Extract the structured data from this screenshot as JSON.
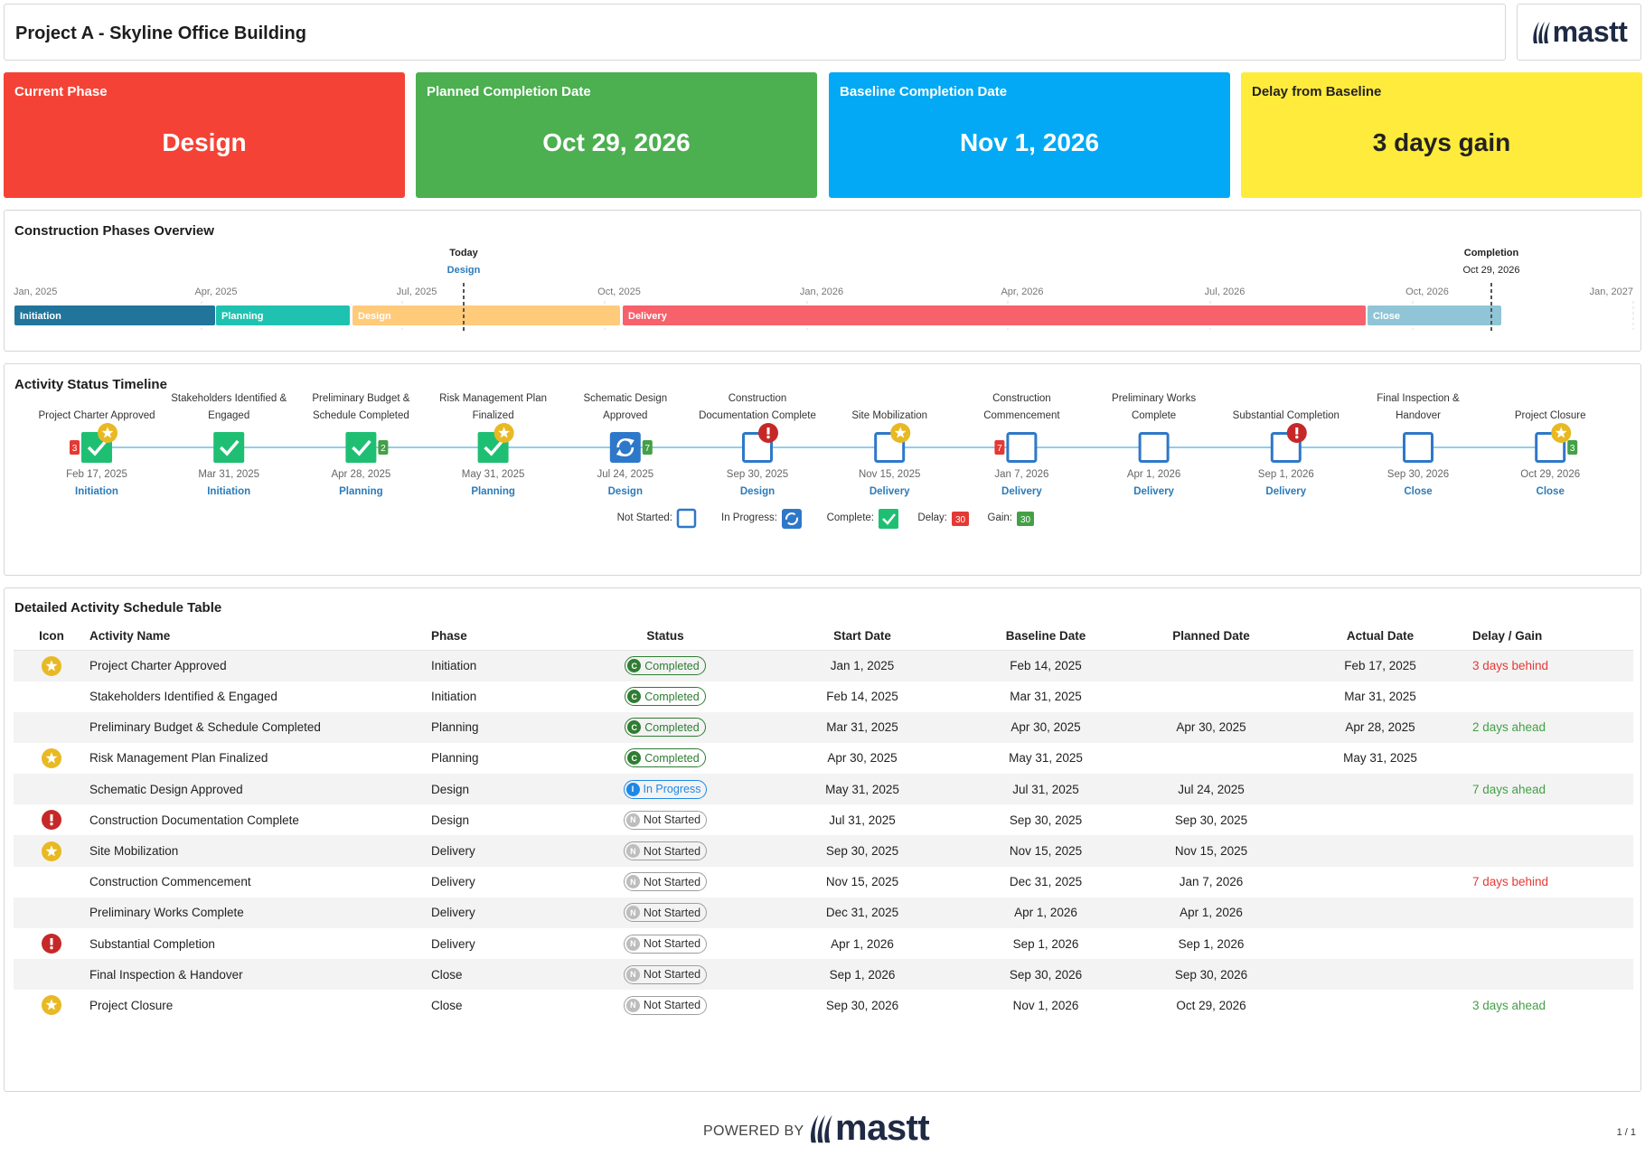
{
  "header": {
    "title": "Project A - Skyline Office Building",
    "logo_text": "mastt"
  },
  "kpis": {
    "phase": {
      "label": "Current Phase",
      "value": "Design",
      "color": "#f44336"
    },
    "planned": {
      "label": "Planned Completion Date",
      "value": "Oct 29, 2026",
      "color": "#4caf50"
    },
    "baseline": {
      "label": "Baseline Completion Date",
      "value": "Nov 1, 2026",
      "color": "#03a9f4"
    },
    "delay": {
      "label": "Delay from Baseline",
      "value": "3 days gain",
      "color": "#ffeb3b"
    }
  },
  "phases_overview": {
    "title": "Construction Phases Overview",
    "today_label": "Today",
    "today_phase": "Design",
    "completion_label": "Completion",
    "completion_date": "Oct 29, 2026",
    "axis_ticks": [
      "Jan, 2025",
      "Apr, 2025",
      "Jul, 2025",
      "Oct, 2025",
      "Jan, 2026",
      "Apr, 2026",
      "Jul, 2026",
      "Oct, 2026",
      "Jan, 2027"
    ],
    "bars": [
      {
        "name": "Initiation",
        "color": "#21759b"
      },
      {
        "name": "Planning",
        "color": "#1fc2b0"
      },
      {
        "name": "Design",
        "color": "#ffca7a"
      },
      {
        "name": "Delivery",
        "color": "#f6616b"
      },
      {
        "name": "Close",
        "color": "#8fc5d6"
      }
    ]
  },
  "timeline": {
    "title": "Activity Status Timeline",
    "milestones": [
      {
        "name": [
          "",
          "Project Charter Approved"
        ],
        "date": "Feb 17, 2025",
        "phase": "Initiation",
        "status": "complete",
        "marker": "star",
        "badge_left": "3",
        "badge_right": ""
      },
      {
        "name": [
          "Stakeholders Identified &",
          "Engaged"
        ],
        "date": "Mar 31, 2025",
        "phase": "Initiation",
        "status": "complete",
        "marker": "",
        "badge_left": "",
        "badge_right": ""
      },
      {
        "name": [
          "Preliminary Budget &",
          "Schedule Completed"
        ],
        "date": "Apr 28, 2025",
        "phase": "Planning",
        "status": "complete",
        "marker": "",
        "badge_left": "",
        "badge_right": "2"
      },
      {
        "name": [
          "Risk Management Plan",
          "Finalized"
        ],
        "date": "May 31, 2025",
        "phase": "Planning",
        "status": "complete",
        "marker": "star",
        "badge_left": "",
        "badge_right": ""
      },
      {
        "name": [
          "Schematic Design",
          "Approved"
        ],
        "date": "Jul 24, 2025",
        "phase": "Design",
        "status": "progress",
        "marker": "",
        "badge_left": "",
        "badge_right": "7"
      },
      {
        "name": [
          "Construction",
          "Documentation Complete"
        ],
        "date": "Sep 30, 2025",
        "phase": "Design",
        "status": "notstarted",
        "marker": "alert",
        "badge_left": "",
        "badge_right": ""
      },
      {
        "name": [
          "",
          "Site Mobilization"
        ],
        "date": "Nov 15, 2025",
        "phase": "Delivery",
        "status": "notstarted",
        "marker": "star",
        "badge_left": "",
        "badge_right": ""
      },
      {
        "name": [
          "Construction",
          "Commencement"
        ],
        "date": "Jan 7, 2026",
        "phase": "Delivery",
        "status": "notstarted",
        "marker": "",
        "badge_left": "7",
        "badge_right": ""
      },
      {
        "name": [
          "Preliminary Works",
          "Complete"
        ],
        "date": "Apr 1, 2026",
        "phase": "Delivery",
        "status": "notstarted",
        "marker": "",
        "badge_left": "",
        "badge_right": ""
      },
      {
        "name": [
          "",
          "Substantial Completion"
        ],
        "date": "Sep 1, 2026",
        "phase": "Delivery",
        "status": "notstarted",
        "marker": "alert",
        "badge_left": "",
        "badge_right": ""
      },
      {
        "name": [
          "Final Inspection &",
          "Handover"
        ],
        "date": "Sep 30, 2026",
        "phase": "Close",
        "status": "notstarted",
        "marker": "",
        "badge_left": "",
        "badge_right": ""
      },
      {
        "name": [
          "",
          "Project Closure"
        ],
        "date": "Oct 29, 2026",
        "phase": "Close",
        "status": "notstarted",
        "marker": "star",
        "badge_left": "",
        "badge_right": "3"
      }
    ],
    "legend": {
      "not_started": "Not Started:",
      "in_progress": "In Progress:",
      "complete": "Complete:",
      "delay": "Delay:",
      "gain": "Gain:",
      "sample_value": "30"
    }
  },
  "table": {
    "title": "Detailed Activity Schedule Table",
    "columns": [
      "Icon",
      "Activity Name",
      "Phase",
      "Status",
      "Start Date",
      "Baseline Date",
      "Planned Date",
      "Actual Date",
      "Delay / Gain"
    ],
    "rows": [
      {
        "icon": "star",
        "name": "Project Charter Approved",
        "phase": "Initiation",
        "status": "Completed",
        "status_key": "completed",
        "start": "Jan 1, 2025",
        "baseline": "Feb 14, 2025",
        "planned": "",
        "actual": "Feb 17, 2025",
        "delta": "3 days behind",
        "delta_type": "behind"
      },
      {
        "icon": "",
        "name": "Stakeholders Identified & Engaged",
        "phase": "Initiation",
        "status": "Completed",
        "status_key": "completed",
        "start": "Feb 14, 2025",
        "baseline": "Mar 31, 2025",
        "planned": "",
        "actual": "Mar 31, 2025",
        "delta": "",
        "delta_type": ""
      },
      {
        "icon": "",
        "name": "Preliminary Budget & Schedule Completed",
        "phase": "Planning",
        "status": "Completed",
        "status_key": "completed",
        "start": "Mar 31, 2025",
        "baseline": "Apr 30, 2025",
        "planned": "Apr 30, 2025",
        "actual": "Apr 28, 2025",
        "delta": "2 days ahead",
        "delta_type": "ahead"
      },
      {
        "icon": "star",
        "name": "Risk Management Plan Finalized",
        "phase": "Planning",
        "status": "Completed",
        "status_key": "completed",
        "start": "Apr 30, 2025",
        "baseline": "May 31, 2025",
        "planned": "",
        "actual": "May 31, 2025",
        "delta": "",
        "delta_type": ""
      },
      {
        "icon": "",
        "name": "Schematic Design Approved",
        "phase": "Design",
        "status": "In Progress",
        "status_key": "inprogress",
        "start": "May 31, 2025",
        "baseline": "Jul 31, 2025",
        "planned": "Jul 24, 2025",
        "actual": "",
        "delta": "7 days ahead",
        "delta_type": "ahead"
      },
      {
        "icon": "alert",
        "name": "Construction Documentation Complete",
        "phase": "Design",
        "status": "Not Started",
        "status_key": "notstarted",
        "start": "Jul 31, 2025",
        "baseline": "Sep 30, 2025",
        "planned": "Sep 30, 2025",
        "actual": "",
        "delta": "",
        "delta_type": ""
      },
      {
        "icon": "star",
        "name": "Site Mobilization",
        "phase": "Delivery",
        "status": "Not Started",
        "status_key": "notstarted",
        "start": "Sep 30, 2025",
        "baseline": "Nov 15, 2025",
        "planned": "Nov 15, 2025",
        "actual": "",
        "delta": "",
        "delta_type": ""
      },
      {
        "icon": "",
        "name": "Construction Commencement",
        "phase": "Delivery",
        "status": "Not Started",
        "status_key": "notstarted",
        "start": "Nov 15, 2025",
        "baseline": "Dec 31, 2025",
        "planned": "Jan 7, 2026",
        "actual": "",
        "delta": "7 days behind",
        "delta_type": "behind"
      },
      {
        "icon": "",
        "name": "Preliminary Works Complete",
        "phase": "Delivery",
        "status": "Not Started",
        "status_key": "notstarted",
        "start": "Dec 31, 2025",
        "baseline": "Apr 1, 2026",
        "planned": "Apr 1, 2026",
        "actual": "",
        "delta": "",
        "delta_type": ""
      },
      {
        "icon": "alert",
        "name": "Substantial Completion",
        "phase": "Delivery",
        "status": "Not Started",
        "status_key": "notstarted",
        "start": "Apr 1, 2026",
        "baseline": "Sep 1, 2026",
        "planned": "Sep 1, 2026",
        "actual": "",
        "delta": "",
        "delta_type": ""
      },
      {
        "icon": "",
        "name": "Final Inspection & Handover",
        "phase": "Close",
        "status": "Not Started",
        "status_key": "notstarted",
        "start": "Sep 1, 2026",
        "baseline": "Sep 30, 2026",
        "planned": "Sep 30, 2026",
        "actual": "",
        "delta": "",
        "delta_type": ""
      },
      {
        "icon": "star",
        "name": "Project Closure",
        "phase": "Close",
        "status": "Not Started",
        "status_key": "notstarted",
        "start": "Sep 30, 2026",
        "baseline": "Nov 1, 2026",
        "planned": "Oct 29, 2026",
        "actual": "",
        "delta": "3 days ahead",
        "delta_type": "ahead"
      }
    ]
  },
  "footer": {
    "powered_by": "POWERED BY",
    "logo_text": "mastt",
    "page": "1 / 1"
  }
}
